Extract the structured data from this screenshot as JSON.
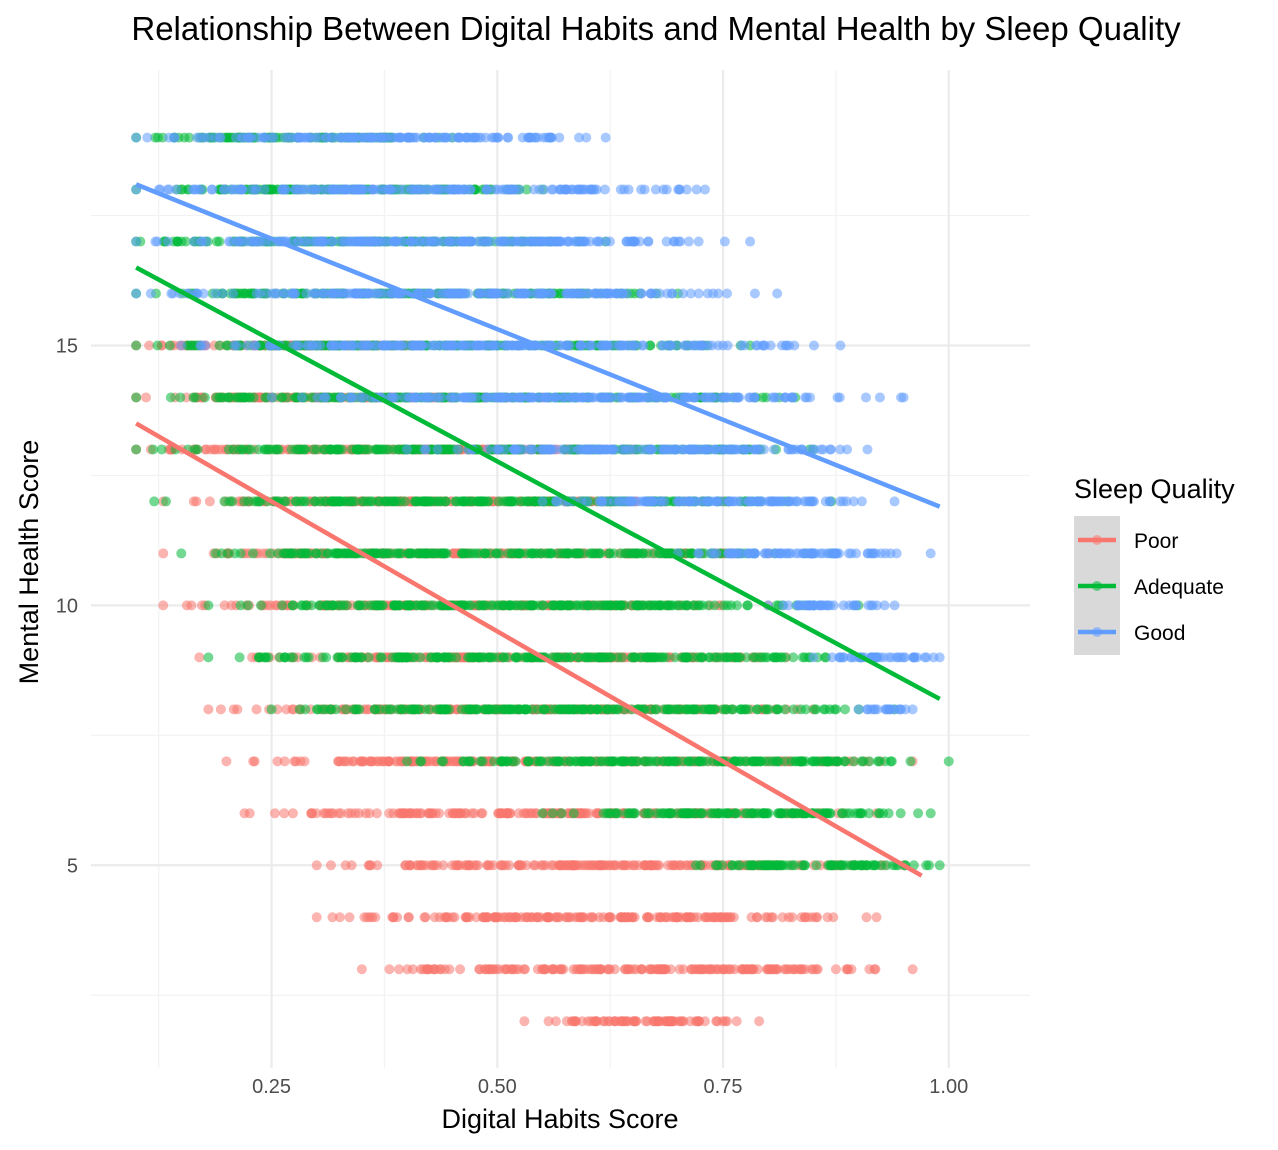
{
  "chart_data": {
    "type": "scatter",
    "title": "Relationship Between Digital Habits and Mental Health by Sleep Quality",
    "xlabel": "Digital Habits Score",
    "ylabel": "Mental Health Score",
    "xlim": [
      0.05,
      1.09
    ],
    "ylim": [
      1.1,
      20.3
    ],
    "x_ticks": [
      0.25,
      0.5,
      0.75,
      1.0
    ],
    "x_tick_labels": [
      "0.25",
      "0.50",
      "0.75",
      "1.00"
    ],
    "y_ticks": [
      5,
      10,
      15
    ],
    "y_tick_labels": [
      "5",
      "10",
      "15"
    ],
    "grid": true,
    "legend": {
      "title": "Sleep Quality",
      "position": "right",
      "entries": [
        "Poor",
        "Adequate",
        "Good"
      ]
    },
    "series": [
      {
        "name": "Poor",
        "color": "#F8766D",
        "rows": [
          {
            "y": 2,
            "x_min": 0.53,
            "x_max": 0.79
          },
          {
            "y": 3,
            "x_min": 0.35,
            "x_max": 0.96
          },
          {
            "y": 4,
            "x_min": 0.3,
            "x_max": 0.92
          },
          {
            "y": 5,
            "x_min": 0.3,
            "x_max": 0.95
          },
          {
            "y": 6,
            "x_min": 0.22,
            "x_max": 0.92
          },
          {
            "y": 7,
            "x_min": 0.2,
            "x_max": 0.96
          },
          {
            "y": 8,
            "x_min": 0.18,
            "x_max": 0.85
          },
          {
            "y": 9,
            "x_min": 0.17,
            "x_max": 0.82
          },
          {
            "y": 10,
            "x_min": 0.13,
            "x_max": 0.8
          },
          {
            "y": 11,
            "x_min": 0.13,
            "x_max": 0.8
          },
          {
            "y": 12,
            "x_min": 0.13,
            "x_max": 0.75
          },
          {
            "y": 13,
            "x_min": 0.1,
            "x_max": 0.65
          },
          {
            "y": 14,
            "x_min": 0.1,
            "x_max": 0.55
          },
          {
            "y": 15,
            "x_min": 0.1,
            "x_max": 0.45
          }
        ],
        "trend": {
          "x": [
            0.1,
            0.97
          ],
          "y": [
            13.5,
            4.8
          ]
        }
      },
      {
        "name": "Adequate",
        "color": "#00BA38",
        "rows": [
          {
            "y": 5,
            "x_min": 0.72,
            "x_max": 0.99
          },
          {
            "y": 6,
            "x_min": 0.55,
            "x_max": 0.98
          },
          {
            "y": 7,
            "x_min": 0.4,
            "x_max": 1.0
          },
          {
            "y": 8,
            "x_min": 0.25,
            "x_max": 0.94
          },
          {
            "y": 9,
            "x_min": 0.18,
            "x_max": 0.92
          },
          {
            "y": 10,
            "x_min": 0.18,
            "x_max": 0.9
          },
          {
            "y": 11,
            "x_min": 0.15,
            "x_max": 0.87
          },
          {
            "y": 12,
            "x_min": 0.12,
            "x_max": 0.87
          },
          {
            "y": 13,
            "x_min": 0.1,
            "x_max": 0.85
          },
          {
            "y": 14,
            "x_min": 0.1,
            "x_max": 0.83
          },
          {
            "y": 15,
            "x_min": 0.1,
            "x_max": 0.78
          },
          {
            "y": 16,
            "x_min": 0.1,
            "x_max": 0.7
          },
          {
            "y": 17,
            "x_min": 0.1,
            "x_max": 0.62
          },
          {
            "y": 18,
            "x_min": 0.1,
            "x_max": 0.55
          },
          {
            "y": 19,
            "x_min": 0.1,
            "x_max": 0.45
          }
        ],
        "trend": {
          "x": [
            0.1,
            0.99
          ],
          "y": [
            16.5,
            8.2
          ]
        }
      },
      {
        "name": "Good",
        "color": "#619CFF",
        "rows": [
          {
            "y": 8,
            "x_min": 0.9,
            "x_max": 0.96
          },
          {
            "y": 9,
            "x_min": 0.85,
            "x_max": 0.99
          },
          {
            "y": 10,
            "x_min": 0.8,
            "x_max": 0.94
          },
          {
            "y": 11,
            "x_min": 0.7,
            "x_max": 0.98
          },
          {
            "y": 12,
            "x_min": 0.55,
            "x_max": 0.94
          },
          {
            "y": 13,
            "x_min": 0.4,
            "x_max": 0.91
          },
          {
            "y": 14,
            "x_min": 0.25,
            "x_max": 0.95
          },
          {
            "y": 15,
            "x_min": 0.15,
            "x_max": 0.88
          },
          {
            "y": 16,
            "x_min": 0.1,
            "x_max": 0.81
          },
          {
            "y": 17,
            "x_min": 0.1,
            "x_max": 0.78
          },
          {
            "y": 18,
            "x_min": 0.1,
            "x_max": 0.73
          },
          {
            "y": 19,
            "x_min": 0.1,
            "x_max": 0.62
          }
        ],
        "trend": {
          "x": [
            0.1,
            0.99
          ],
          "y": [
            18.1,
            11.9
          ]
        }
      }
    ]
  }
}
